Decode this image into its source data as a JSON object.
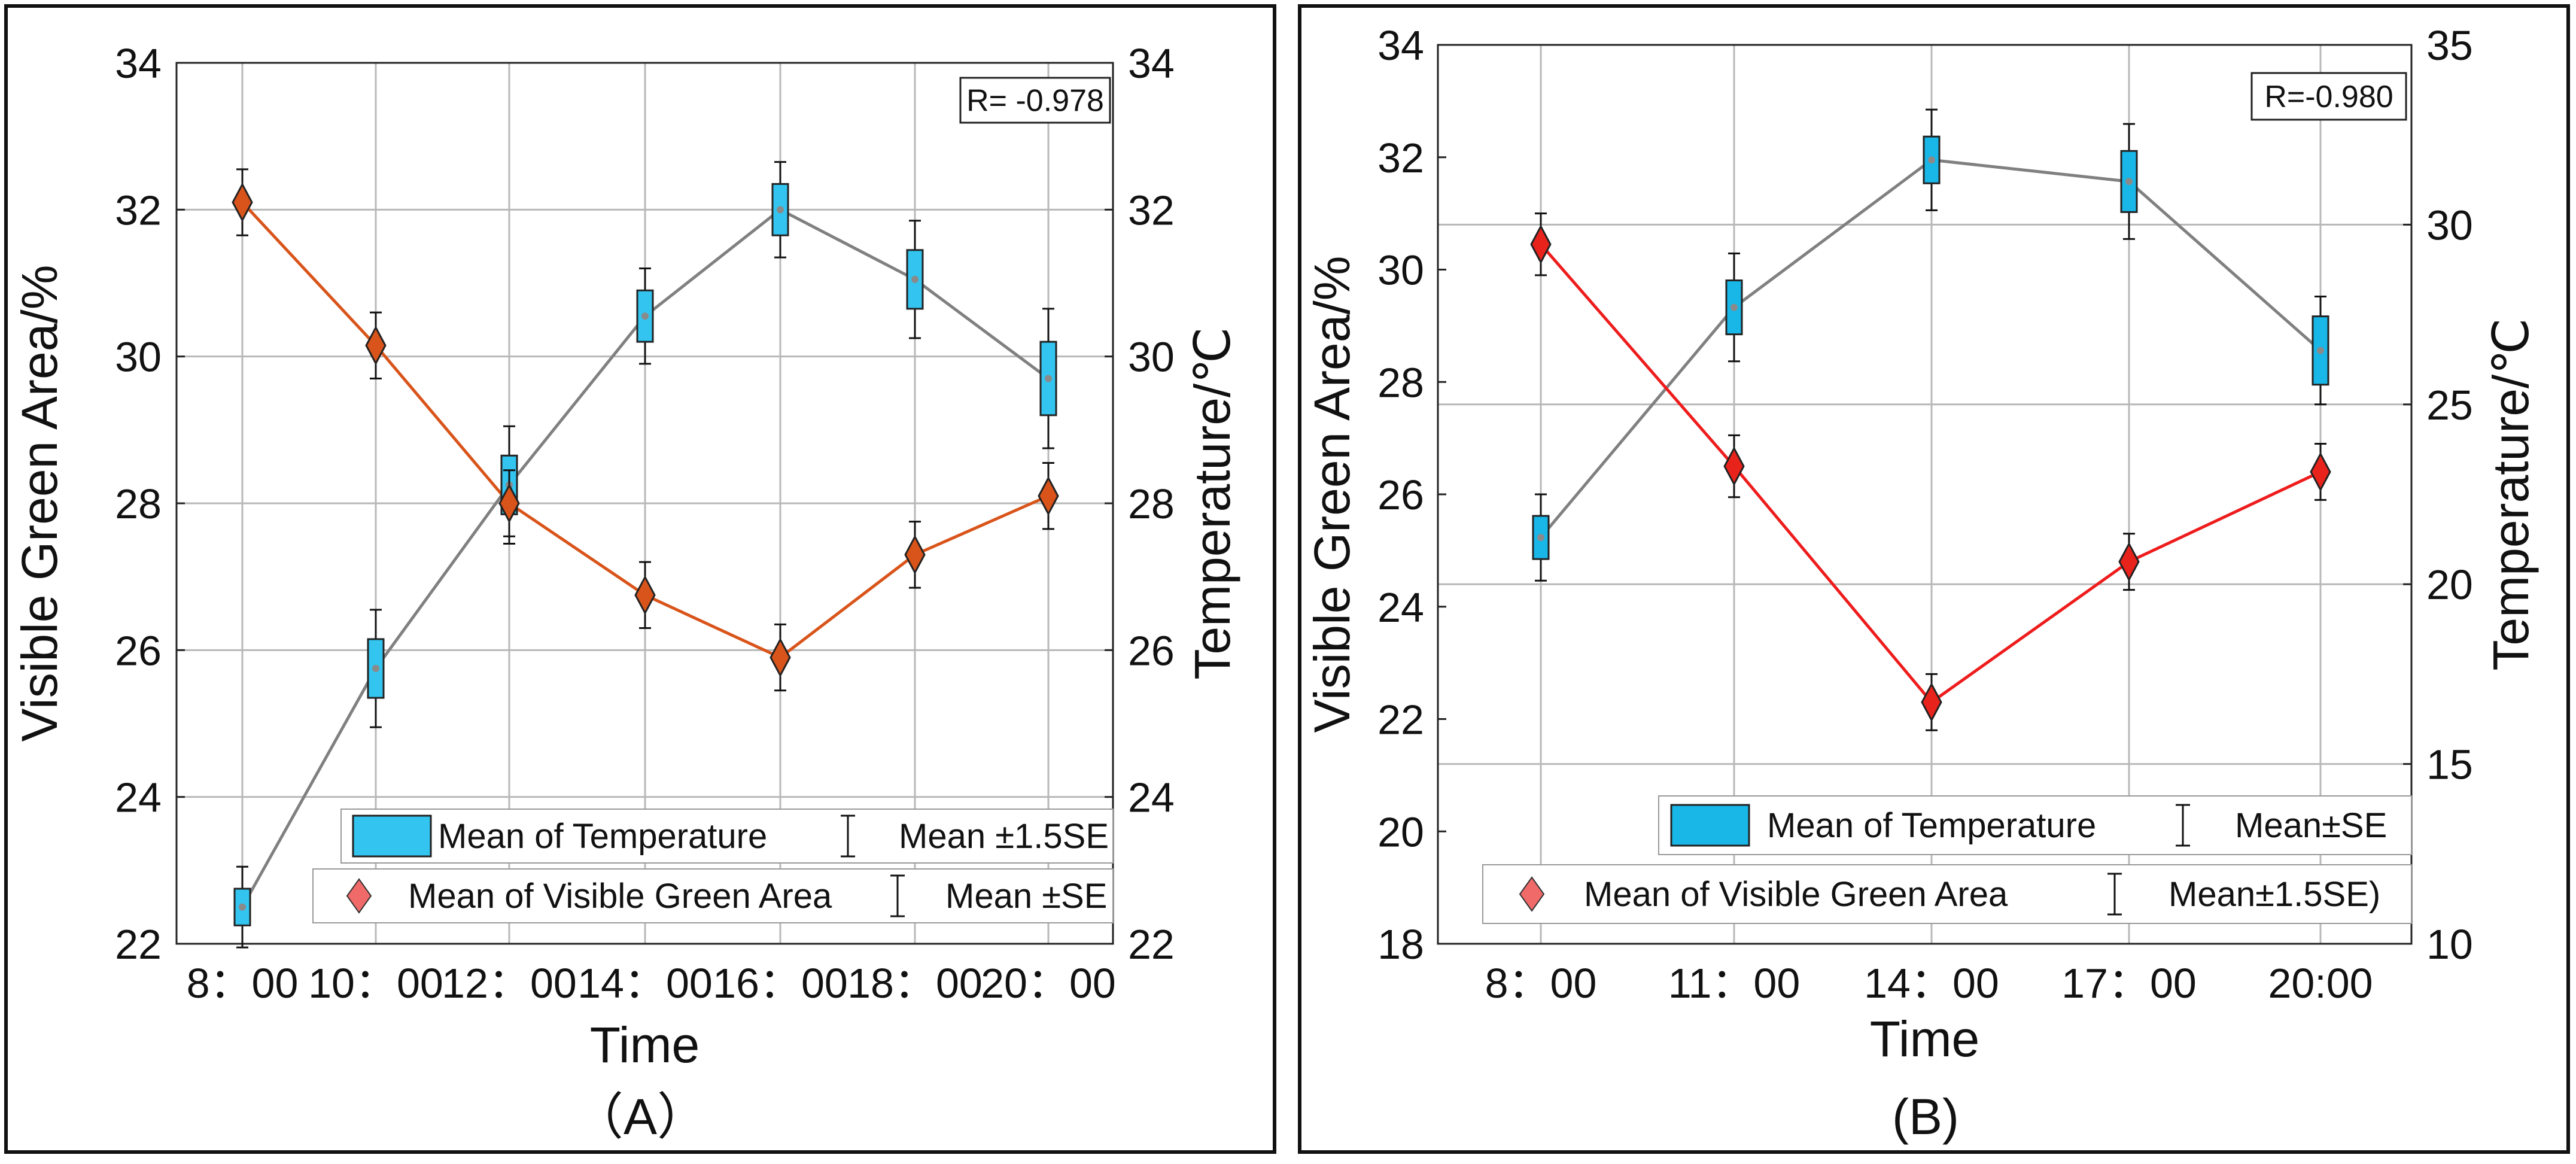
{
  "chart_data": [
    {
      "panel_label": "（A）",
      "type": "line",
      "categories": [
        "8：00",
        "10：00",
        "12：00",
        "14：00",
        "16：00",
        "18：00",
        "20：00"
      ],
      "xlabel": "Time",
      "ylabel_left": "Visible Green Area/%",
      "ylabel_right": "Temperature/℃",
      "ylim_left": [
        22,
        34
      ],
      "ylim_right": [
        22,
        34
      ],
      "yticks_left": [
        22,
        24,
        26,
        28,
        30,
        32,
        34
      ],
      "yticks_right": [
        22,
        24,
        26,
        28,
        30,
        32,
        34
      ],
      "correlation_label": "R= -0.978",
      "series": [
        {
          "name": "Mean of Visible Green Area",
          "axis": "left",
          "marker": "diamond",
          "color": "#d9541a",
          "line_color": "#d9541a",
          "values": [
            32.1,
            30.15,
            28.0,
            26.75,
            25.9,
            27.3,
            28.1
          ],
          "error": [
            0.45,
            0.45,
            0.45,
            0.45,
            0.45,
            0.45,
            0.45
          ]
        },
        {
          "name": "Mean of Temperature",
          "axis": "right",
          "marker": "box",
          "color": "#33c4f0",
          "line_color": "#808080",
          "values": [
            22.5,
            25.75,
            28.25,
            30.55,
            32.0,
            31.05,
            29.7
          ],
          "box_half": [
            0.25,
            0.4,
            0.4,
            0.35,
            0.35,
            0.4,
            0.5
          ],
          "error": [
            0.55,
            0.8,
            0.8,
            0.65,
            0.65,
            0.8,
            0.95
          ]
        }
      ],
      "legend": [
        {
          "swatch": "box",
          "label": "Mean of Temperature",
          "err_label": "Mean ±1.5SE"
        },
        {
          "swatch": "diamond",
          "label": "Mean of Visible Green Area",
          "err_label": "Mean ±SE"
        }
      ]
    },
    {
      "panel_label": "(B)",
      "type": "line",
      "categories": [
        "8：00",
        "11：00",
        "14：00",
        "17：00",
        "20:00"
      ],
      "xlabel": "Time",
      "ylabel_left": "Visible Green Area/%",
      "ylabel_right": "Temperature/℃",
      "ylim_left": [
        18,
        34
      ],
      "ylim_right": [
        10,
        35
      ],
      "yticks_left": [
        18,
        20,
        22,
        24,
        26,
        28,
        30,
        32,
        34
      ],
      "yticks_right": [
        10,
        15,
        20,
        25,
        30,
        35
      ],
      "correlation_label": "R=-0.980",
      "series": [
        {
          "name": "Mean of Visible Green Area",
          "axis": "left",
          "marker": "diamond",
          "color": "#e8231b",
          "line_color": "#ee1c1c",
          "values": [
            30.45,
            26.5,
            22.3,
            24.8,
            26.4
          ],
          "error": [
            0.55,
            0.55,
            0.5,
            0.5,
            0.5
          ]
        },
        {
          "name": "Mean of Temperature",
          "axis": "right",
          "marker": "box",
          "color": "#18b7e8",
          "line_color": "#808080",
          "values": [
            21.3,
            27.7,
            31.8,
            31.2,
            26.5
          ],
          "box_half": [
            0.6,
            0.75,
            0.65,
            0.85,
            0.95
          ],
          "error": [
            1.2,
            1.5,
            1.4,
            1.6,
            1.5
          ]
        }
      ],
      "legend": [
        {
          "swatch": "box",
          "label": "Mean of Temperature",
          "err_label": "Mean±SE"
        },
        {
          "swatch": "diamond",
          "label": "Mean of Visible Green Area",
          "err_label": "Mean±1.5SE)"
        }
      ]
    }
  ]
}
